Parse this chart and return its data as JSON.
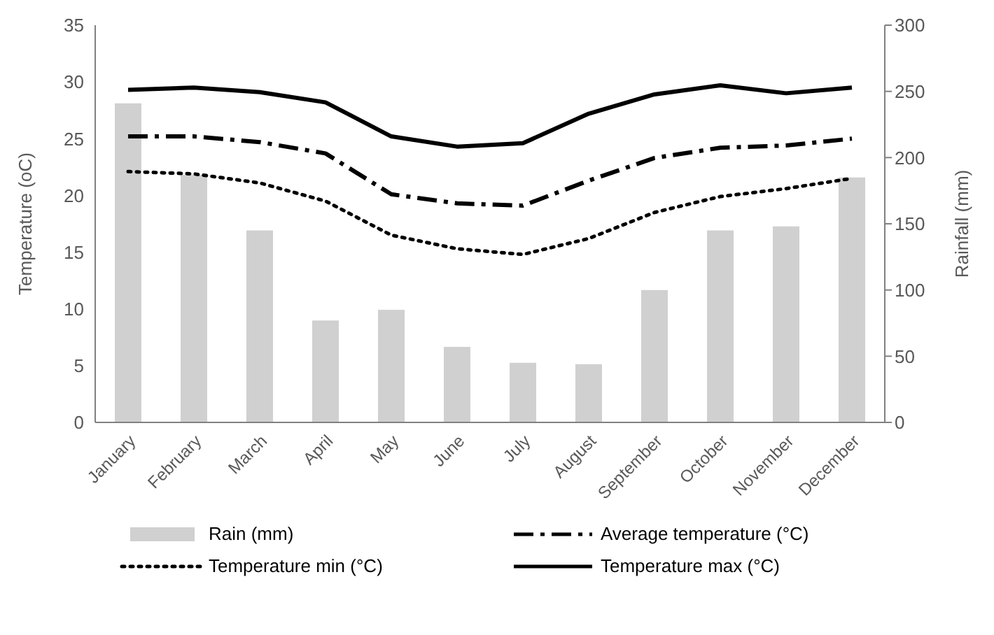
{
  "chart_data": {
    "type": "line",
    "categories": [
      "January",
      "February",
      "March",
      "April",
      "May",
      "June",
      "July",
      "August",
      "September",
      "October",
      "November",
      "December"
    ],
    "series": [
      {
        "name": "Rain (mm)",
        "type": "bar",
        "axis": "y2",
        "color": "#d0d0d0",
        "values": [
          241,
          187,
          145,
          77,
          85,
          57,
          45,
          44,
          100,
          145,
          148,
          185
        ]
      },
      {
        "name": "Average temperature (°C)",
        "color": "#000000",
        "line_style": "dashed",
        "values": [
          25.2,
          25.2,
          24.7,
          23.7,
          20.1,
          19.3,
          19.1,
          21.3,
          23.3,
          24.2,
          24.4,
          25.0
        ]
      },
      {
        "name": "Temperature min (°C)",
        "color": "#000000",
        "line_style": "dotted",
        "values": [
          22.1,
          21.9,
          21.1,
          19.5,
          16.5,
          15.3,
          14.8,
          16.2,
          18.5,
          19.9,
          20.6,
          21.5
        ]
      },
      {
        "name": "Temperature max (°C)",
        "color": "#000000",
        "line_style": "solid",
        "values": [
          29.3,
          29.5,
          29.1,
          28.2,
          25.2,
          24.3,
          24.6,
          27.2,
          28.9,
          29.7,
          29.0,
          29.5
        ]
      }
    ],
    "ylabel": "Temperature (oC)",
    "y2label": "Rainfall (mm)",
    "ylim": [
      0,
      35
    ],
    "yticks": [
      0,
      5,
      10,
      15,
      20,
      25,
      30,
      35
    ],
    "y2lim": [
      0,
      300
    ],
    "y2ticks": [
      0,
      50,
      100,
      150,
      200,
      250,
      300
    ],
    "grid": false,
    "legend": "bottom",
    "marker": "none"
  }
}
